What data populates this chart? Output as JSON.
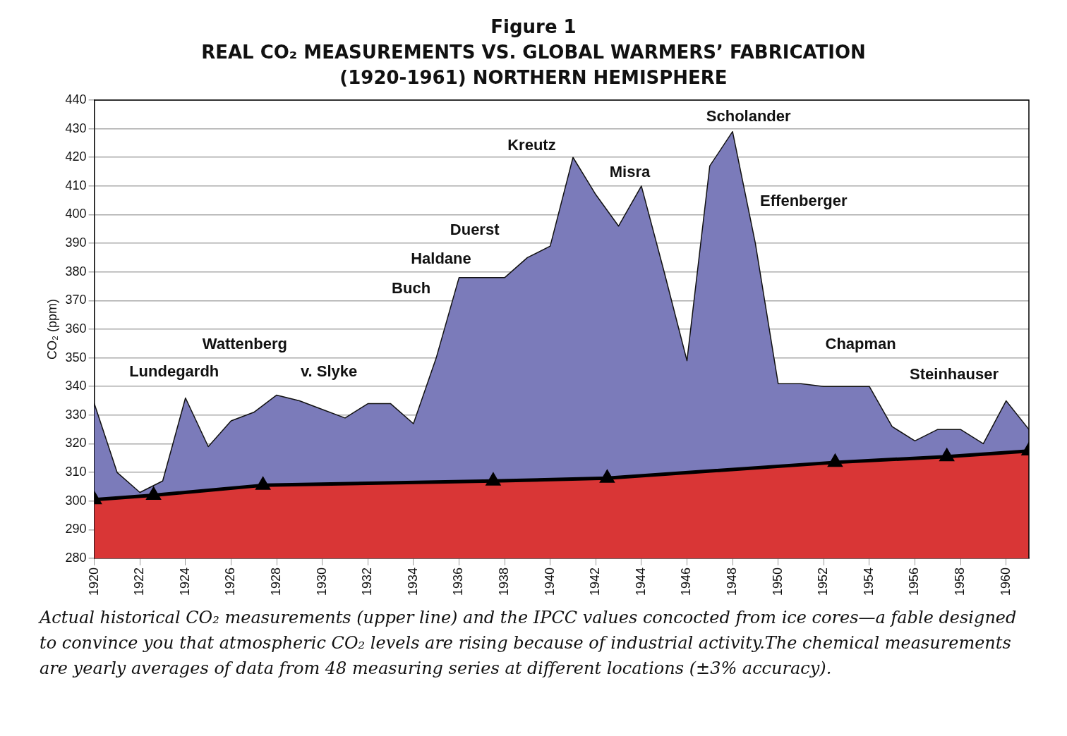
{
  "chart_data": {
    "type": "area",
    "title": "Figure 1",
    "subtitle": "REAL CO₂ MEASUREMENTS VS. GLOBAL WARMERS’ FABRICATION\n(1920-1961) NORTHERN HEMISPHERE",
    "ylabel": "CO₂ (ppm)",
    "xlim": [
      1920,
      1961
    ],
    "xticks": [
      1920,
      1922,
      1924,
      1926,
      1928,
      1930,
      1932,
      1934,
      1936,
      1938,
      1940,
      1942,
      1944,
      1946,
      1948,
      1950,
      1952,
      1954,
      1956,
      1958,
      1960
    ],
    "ylim": [
      280,
      440
    ],
    "yticks": [
      280,
      290,
      300,
      310,
      320,
      330,
      340,
      350,
      360,
      370,
      380,
      390,
      400,
      410,
      420,
      430,
      440
    ],
    "grid": "y",
    "series": [
      {
        "color": "#7b7bba",
        "marker": "none",
        "x": [
          1920,
          1921,
          1922,
          1923,
          1924,
          1925,
          1926,
          1927,
          1928,
          1929,
          1930,
          1931,
          1932,
          1933,
          1934,
          1935,
          1936,
          1937,
          1938,
          1939,
          1940,
          1941,
          1942,
          1943,
          1944,
          1945,
          1946,
          1947,
          1948,
          1949,
          1950,
          1951,
          1952,
          1953,
          1954,
          1955,
          1956,
          1957,
          1958,
          1959,
          1960,
          1961
        ],
        "values": [
          334,
          310,
          303,
          307,
          336,
          319,
          328,
          331,
          337,
          335,
          332,
          329,
          334,
          334,
          327,
          350,
          378,
          378,
          378,
          385,
          389,
          420,
          407,
          396,
          410,
          380,
          349,
          417,
          429,
          390,
          341,
          341,
          340,
          340,
          340,
          326,
          321,
          325,
          325,
          320,
          335,
          325
        ]
      },
      {
        "color": "#d93636",
        "marker": "triangle",
        "x": [
          1920,
          1922.6,
          1927.4,
          1937.5,
          1942.5,
          1952.5,
          1957.4,
          1961
        ],
        "values": [
          300.5,
          302,
          305.5,
          307,
          308,
          313.5,
          315.5,
          317.5
        ]
      }
    ],
    "annotations": [
      "Lundegardh",
      "Wattenberg",
      "v. Slyke",
      "Buch",
      "Haldane",
      "Duerst",
      "Kreutz",
      "Misra",
      "Scholander",
      "Effenberger",
      "Chapman",
      "Steinhauser",
      "Actual historical CO₂ measurements (upper line) and the IPCC values concocted from ice cores—a fable designed to convince you that atmospheric CO₂ levels are rising because of industrial activity.The chemical measurements are yearly averages of data from 48 measuring series at different locations (±3% accuracy)."
    ]
  }
}
